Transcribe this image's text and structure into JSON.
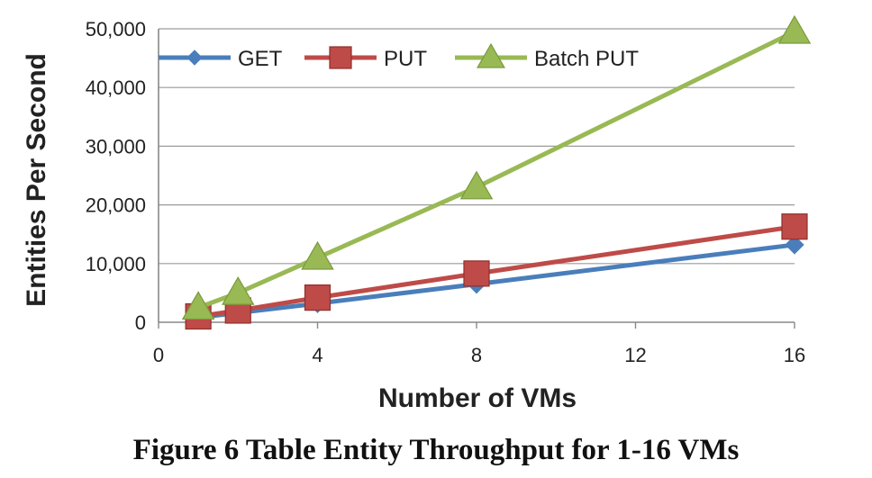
{
  "caption": "Figure 6 Table Entity Throughput for 1-16 VMs",
  "chart_data": {
    "type": "line",
    "title": "",
    "xlabel": "Number of VMs",
    "ylabel": "Entities Per Second",
    "xlim": [
      0,
      16
    ],
    "ylim": [
      0,
      50000
    ],
    "x_ticks": [
      0,
      4,
      8,
      12,
      16
    ],
    "x_tick_labels": [
      "0",
      "4",
      "8",
      "12",
      "16"
    ],
    "y_ticks": [
      0,
      10000,
      20000,
      30000,
      40000,
      50000
    ],
    "y_tick_labels": [
      "0",
      "10,000",
      "20,000",
      "30,000",
      "40,000",
      "50,000"
    ],
    "grid": "horizontal",
    "legend_position": "top-left",
    "series": [
      {
        "name": "GET",
        "color": "#4A7EBB",
        "marker": "diamond",
        "x": [
          1,
          2,
          4,
          8,
          16
        ],
        "y": [
          800,
          1600,
          3200,
          6500,
          13200
        ]
      },
      {
        "name": "PUT",
        "color": "#BE4B48",
        "marker": "square",
        "x": [
          1,
          2,
          4,
          8,
          16
        ],
        "y": [
          1000,
          2000,
          4200,
          8300,
          16300
        ]
      },
      {
        "name": "Batch PUT",
        "color": "#98B954",
        "marker": "triangle",
        "x": [
          1,
          2,
          4,
          8,
          16
        ],
        "y": [
          2500,
          5000,
          11000,
          23000,
          49500
        ]
      }
    ]
  }
}
